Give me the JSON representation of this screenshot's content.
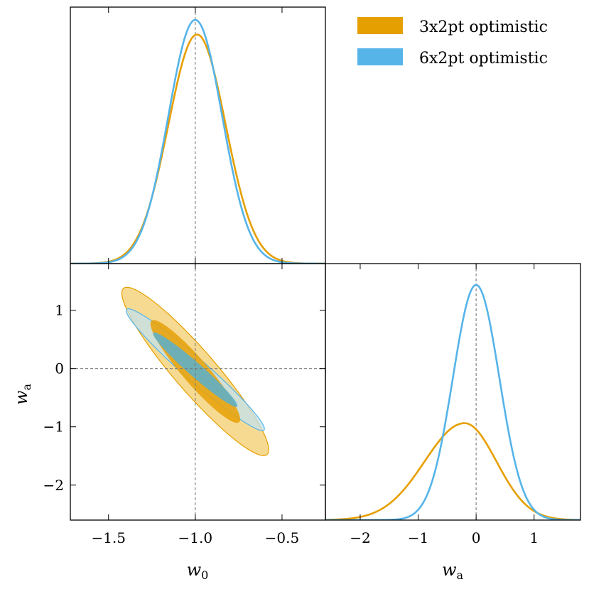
{
  "chart_data": {
    "type": "corner",
    "parameters": [
      "w_0",
      "w_a"
    ],
    "fiducial": {
      "w0": -1.0,
      "wa": 0.0
    },
    "axes": {
      "w0": {
        "label_main": "w",
        "label_sub": "0",
        "range": [
          -1.72,
          -0.25
        ],
        "ticks": [
          -1.5,
          -1.0,
          -0.5
        ],
        "tick_labels": [
          "−1.5",
          "−1.0",
          "−0.5"
        ]
      },
      "wa": {
        "label_main": "w",
        "label_sub": "a",
        "range": [
          -2.6,
          1.8
        ],
        "ticks": [
          -2,
          -1,
          0,
          1
        ],
        "tick_labels": [
          "−2",
          "−1",
          "0",
          "1"
        ]
      }
    },
    "series": [
      {
        "name": "3x2pt optimistic",
        "color": "#E69F00",
        "fill_outer": "#F5D37F",
        "fill_inner": "#E8A30E",
        "w0_marginal": {
          "mean": -0.99,
          "sigma": 0.165,
          "peak": 0.94
        },
        "wa_marginal": {
          "mean": -0.2,
          "sigma": 0.55,
          "peak": 0.68,
          "skew_left": 1.25
        },
        "contours": {
          "center": [
            -1.0,
            -0.05
          ],
          "sigma_w0": 0.17,
          "sigma_wa": 0.58,
          "rho": -0.93,
          "levels": [
            1.52,
            2.49
          ]
        }
      },
      {
        "name": "6x2pt optimistic",
        "color": "#56B4E9",
        "fill_outer": "#C3E2EC",
        "fill_inner": "#5FAFC4",
        "w0_marginal": {
          "mean": -1.0,
          "sigma": 0.155,
          "peak": 1.0
        },
        "wa_marginal": {
          "mean": 0.0,
          "sigma": 0.4,
          "peak": 1.65
        },
        "contours": {
          "center": [
            -1.0,
            -0.02
          ],
          "sigma_w0": 0.16,
          "sigma_wa": 0.42,
          "rho": -0.97,
          "levels": [
            1.52,
            2.49
          ]
        }
      }
    ],
    "wa_marginal_yrange": [
      0,
      1.8
    ],
    "legend": {
      "location": "upper right"
    }
  }
}
